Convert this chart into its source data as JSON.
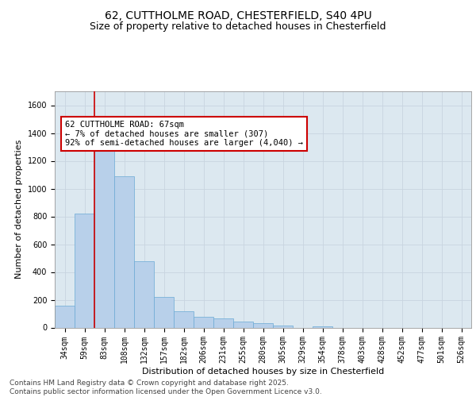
{
  "title_line1": "62, CUTTHOLME ROAD, CHESTERFIELD, S40 4PU",
  "title_line2": "Size of property relative to detached houses in Chesterfield",
  "xlabel": "Distribution of detached houses by size in Chesterfield",
  "ylabel": "Number of detached properties",
  "categories": [
    "34sqm",
    "59sqm",
    "83sqm",
    "108sqm",
    "132sqm",
    "157sqm",
    "182sqm",
    "206sqm",
    "231sqm",
    "255sqm",
    "280sqm",
    "305sqm",
    "329sqm",
    "354sqm",
    "378sqm",
    "403sqm",
    "428sqm",
    "452sqm",
    "477sqm",
    "501sqm",
    "526sqm"
  ],
  "values": [
    160,
    820,
    1300,
    1090,
    480,
    220,
    120,
    75,
    65,
    45,
    30,
    15,
    0,
    10,
    0,
    0,
    0,
    0,
    0,
    0,
    0
  ],
  "bar_color": "#b8d0ea",
  "bar_edge_color": "#6aaad4",
  "annotation_box_text": "62 CUTTHOLME ROAD: 67sqm\n← 7% of detached houses are smaller (307)\n92% of semi-detached houses are larger (4,040) →",
  "vline_x": 1.5,
  "vline_color": "#cc0000",
  "box_edge_color": "#cc0000",
  "ylim": [
    0,
    1700
  ],
  "yticks": [
    0,
    200,
    400,
    600,
    800,
    1000,
    1200,
    1400,
    1600
  ],
  "grid_color": "#c8d4e0",
  "bg_color": "#dce8f0",
  "footer_text": "Contains HM Land Registry data © Crown copyright and database right 2025.\nContains public sector information licensed under the Open Government Licence v3.0.",
  "title_fontsize": 10,
  "subtitle_fontsize": 9,
  "annotation_fontsize": 7.5,
  "footer_fontsize": 6.5,
  "tick_fontsize": 7,
  "ylabel_fontsize": 8,
  "xlabel_fontsize": 8
}
